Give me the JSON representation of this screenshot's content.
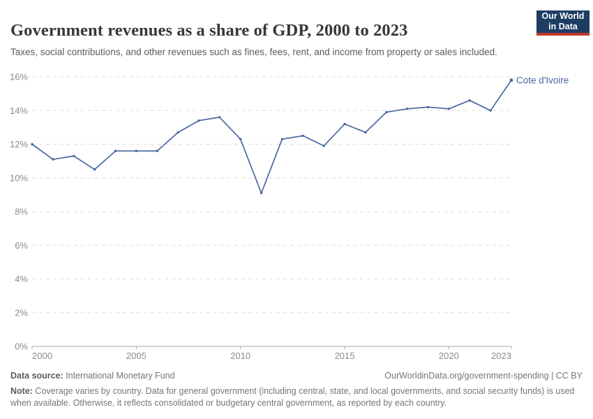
{
  "header": {
    "title": "Government revenues as a share of GDP, 2000 to 2023",
    "subtitle": "Taxes, social contributions, and other revenues such as fines, fees, rent, and income from property or sales included.",
    "logo_line1": "Our World",
    "logo_line2": "in Data"
  },
  "colors": {
    "accent_blue": "#4a67a3",
    "logo_navy": "#1d3d63",
    "logo_red": "#c0392b",
    "gridline": "#dddddd",
    "axis": "#a8a8a8",
    "tick_text": "#8b8b8b"
  },
  "chart_data": {
    "type": "line",
    "title": "Government revenues as a share of GDP, 2000 to 2023",
    "xlabel": "",
    "ylabel": "",
    "x": [
      2000,
      2001,
      2002,
      2003,
      2004,
      2005,
      2006,
      2007,
      2008,
      2009,
      2010,
      2011,
      2012,
      2013,
      2014,
      2015,
      2016,
      2017,
      2018,
      2019,
      2020,
      2021,
      2022,
      2023
    ],
    "series": [
      {
        "name": "Cote d'Ivoire",
        "color": "#4a67a3",
        "values": [
          12.0,
          11.1,
          11.3,
          10.5,
          11.6,
          11.6,
          11.6,
          12.7,
          13.4,
          13.6,
          12.3,
          9.1,
          12.3,
          12.5,
          11.9,
          13.2,
          12.7,
          13.9,
          14.1,
          14.2,
          14.1,
          14.6,
          14.0,
          15.8
        ]
      }
    ],
    "ylim": [
      0,
      16
    ],
    "yticks": [
      0,
      2,
      4,
      6,
      8,
      10,
      12,
      14,
      16
    ],
    "y_tick_suffix": "%",
    "xticks": [
      2000,
      2005,
      2010,
      2015,
      2020,
      2023
    ],
    "grid": "horizontal-dashed",
    "legend": "line-end-label"
  },
  "footer": {
    "datasource_label": "Data source:",
    "datasource_value": " International Monetary Fund",
    "license": "OurWorldinData.org/government-spending | CC BY",
    "note_label": "Note:",
    "note_text": " Coverage varies by country. Data for general government (including central, state, and local governments, and social security funds) is used when available. Otherwise, it reflects consolidated or budgetary central government, as reported by each country."
  }
}
